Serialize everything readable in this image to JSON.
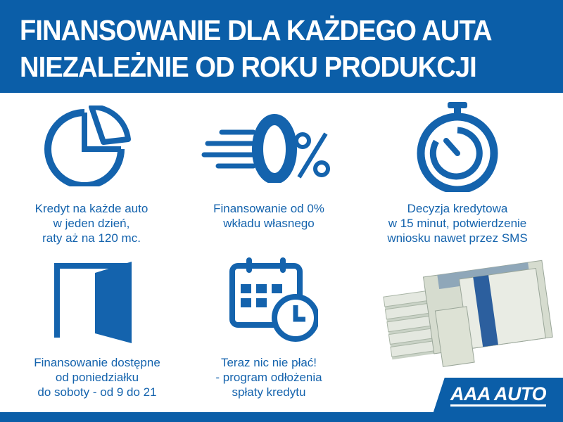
{
  "header": {
    "line1": "FINANSOWANIE DLA KAŻDEGO AUTA",
    "line2": "NIEZALEŻNIE OD ROKU PRODUKCJI"
  },
  "features": [
    {
      "icon": "pie-chart-icon",
      "lines": [
        "Kredyt na każde auto",
        "w jeden dzień,",
        "raty aż na 120 mc."
      ]
    },
    {
      "icon": "zero-percent-icon",
      "symbol": "0%",
      "lines": [
        "Finansowanie od 0%",
        "wkładu własnego"
      ]
    },
    {
      "icon": "stopwatch-icon",
      "lines": [
        "Decyzja kredytowa",
        "w 15 minut, potwierdzenie",
        "wniosku nawet przez SMS"
      ]
    },
    {
      "icon": "open-door-icon",
      "lines": [
        "Finansowanie dostępne",
        "od poniedziałku",
        "do soboty - od 9 do 21"
      ]
    },
    {
      "icon": "calendar-clock-icon",
      "lines": [
        "Teraz nic nie płać!",
        "- program odłożenia",
        "spłaty kredytu"
      ]
    }
  ],
  "logo": {
    "text": "AAA AUTO"
  },
  "colors": {
    "brand": "#0b5ea8",
    "text": "#1463ad"
  }
}
